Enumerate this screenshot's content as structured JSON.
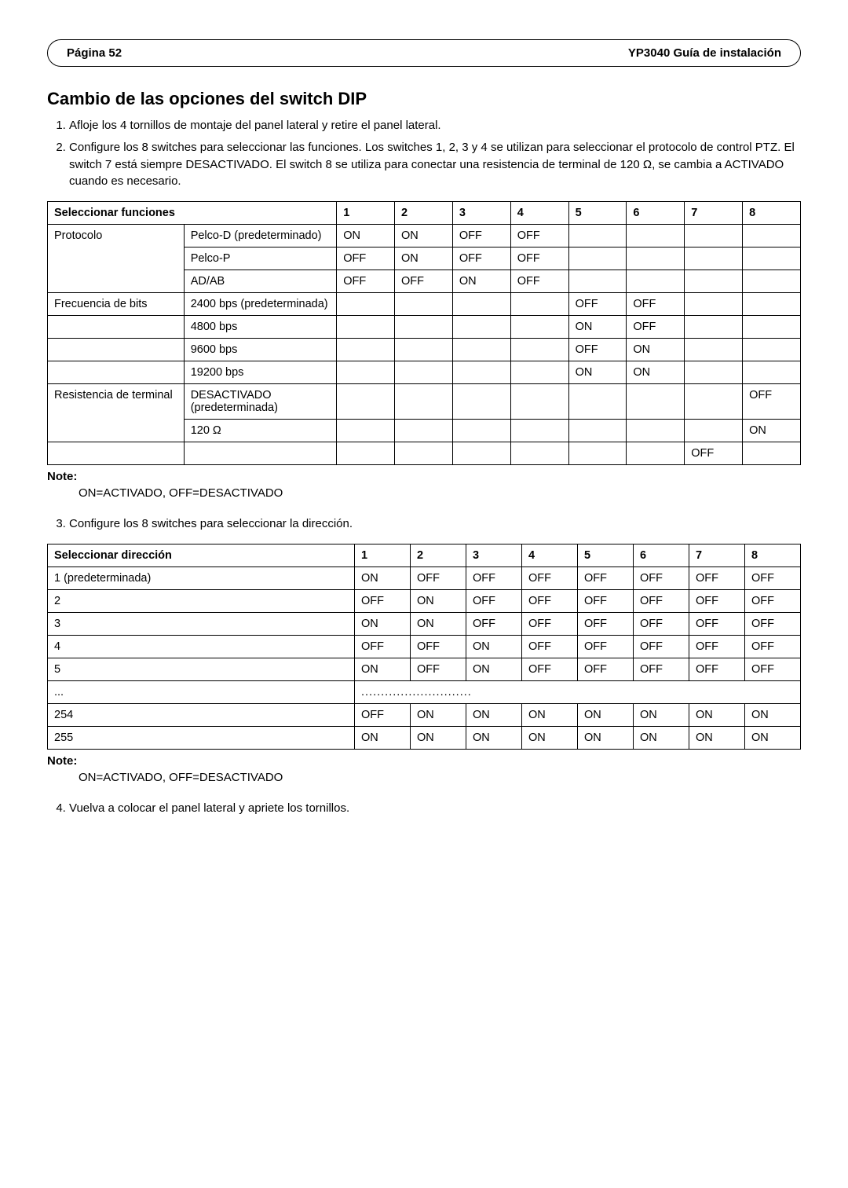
{
  "header": {
    "page_label": "Página 52",
    "doc_title": "YP3040 Guía de instalación"
  },
  "section_title": "Cambio de las opciones del switch DIP",
  "steps": {
    "s1": "Afloje los 4 tornillos de montaje del panel lateral y retire el panel lateral.",
    "s2": "Configure los 8 switches para seleccionar las funciones. Los switches 1, 2, 3 y 4 se utilizan para seleccionar el protocolo de control PTZ. El switch 7 está siempre DESACTIVADO. El switch 8 se utiliza para conectar una resistencia de terminal de 120 Ω, se cambia a ACTIVADO cuando es necesario.",
    "s3": "Configure los 8 switches para seleccionar la dirección.",
    "s4": "Vuelva a colocar el panel lateral y apriete los tornillos."
  },
  "note_label": "Note:",
  "note_text": "ON=ACTIVADO, OFF=DESACTIVADO",
  "functions_table": {
    "header_label": "Seleccionar funciones",
    "cols": [
      "1",
      "2",
      "3",
      "4",
      "5",
      "6",
      "7",
      "8"
    ],
    "groups": [
      {
        "category": "Protocolo",
        "rows": [
          {
            "label": "Pelco-D (predeterminado)",
            "cells": [
              "ON",
              "ON",
              "OFF",
              "OFF",
              "",
              "",
              "",
              ""
            ]
          },
          {
            "label": "Pelco-P",
            "cells": [
              "OFF",
              "ON",
              "OFF",
              "OFF",
              "",
              "",
              "",
              ""
            ]
          },
          {
            "label": "AD/AB",
            "cells": [
              "OFF",
              "OFF",
              "ON",
              "OFF",
              "",
              "",
              "",
              ""
            ]
          }
        ]
      },
      {
        "category": "Frecuencia de bits",
        "rows": [
          {
            "label": "2400 bps (predeterminada)",
            "cells": [
              "",
              "",
              "",
              "",
              "OFF",
              "OFF",
              "",
              ""
            ]
          },
          {
            "label": "4800 bps",
            "cells": [
              "",
              "",
              "",
              "",
              "ON",
              "OFF",
              "",
              ""
            ]
          },
          {
            "label": "9600 bps",
            "cells": [
              "",
              "",
              "",
              "",
              "OFF",
              "ON",
              "",
              ""
            ]
          },
          {
            "label": "19200 bps",
            "cells": [
              "",
              "",
              "",
              "",
              "ON",
              "ON",
              "",
              ""
            ]
          }
        ]
      },
      {
        "category": "Resistencia de terminal",
        "rows": [
          {
            "label": "DESACTIVADO (predeterminada)",
            "cells": [
              "",
              "",
              "",
              "",
              "",
              "",
              "",
              "OFF"
            ]
          },
          {
            "label": "120 Ω",
            "cells": [
              "",
              "",
              "",
              "",
              "",
              "",
              "",
              "ON"
            ]
          }
        ]
      }
    ],
    "tail_row": {
      "cells": [
        "",
        "",
        "",
        "",
        "",
        "",
        "OFF",
        ""
      ]
    }
  },
  "address_table": {
    "header_label": "Seleccionar dirección",
    "cols": [
      "1",
      "2",
      "3",
      "4",
      "5",
      "6",
      "7",
      "8"
    ],
    "rows": [
      {
        "label": "1 (predeterminada)",
        "cells": [
          "ON",
          "OFF",
          "OFF",
          "OFF",
          "OFF",
          "OFF",
          "OFF",
          "OFF"
        ]
      },
      {
        "label": "2",
        "cells": [
          "OFF",
          "ON",
          "OFF",
          "OFF",
          "OFF",
          "OFF",
          "OFF",
          "OFF"
        ]
      },
      {
        "label": "3",
        "cells": [
          "ON",
          "ON",
          "OFF",
          "OFF",
          "OFF",
          "OFF",
          "OFF",
          "OFF"
        ]
      },
      {
        "label": "4",
        "cells": [
          "OFF",
          "OFF",
          "ON",
          "OFF",
          "OFF",
          "OFF",
          "OFF",
          "OFF"
        ]
      },
      {
        "label": "5",
        "cells": [
          "ON",
          "OFF",
          "ON",
          "OFF",
          "OFF",
          "OFF",
          "OFF",
          "OFF"
        ]
      }
    ],
    "ellipsis": {
      "label": "...",
      "dots": "............................"
    },
    "tail_rows": [
      {
        "label": "254",
        "cells": [
          "OFF",
          "ON",
          "ON",
          "ON",
          "ON",
          "ON",
          "ON",
          "ON"
        ]
      },
      {
        "label": "255",
        "cells": [
          "ON",
          "ON",
          "ON",
          "ON",
          "ON",
          "ON",
          "ON",
          "ON"
        ]
      }
    ]
  }
}
